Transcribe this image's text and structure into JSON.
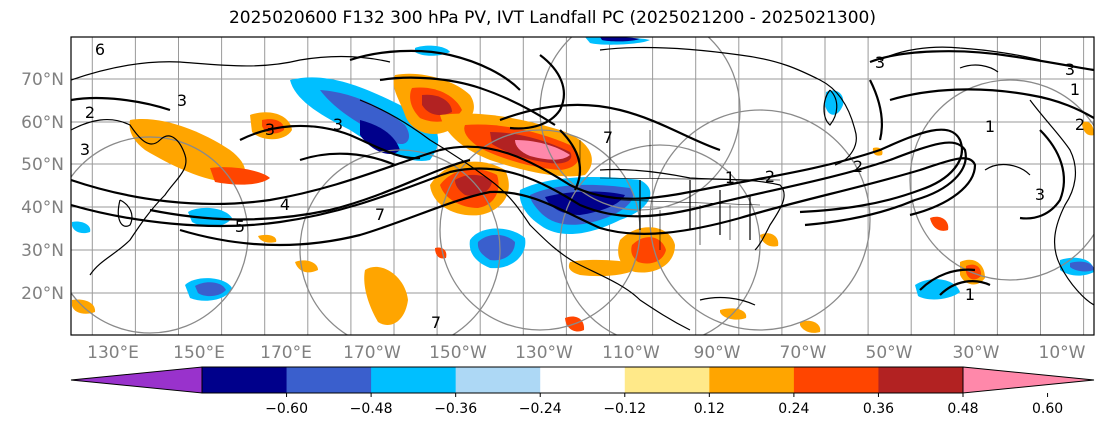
{
  "title": "2025020600 F132 300 hPa PV, IVT Landfall PC (2025021200 - 2025021300)",
  "lat_labels": [
    "70°N",
    "60°N",
    "50°N",
    "40°N",
    "30°N",
    "20°N"
  ],
  "lon_labels": [
    "130°E",
    "150°E",
    "170°E",
    "170°W",
    "150°W",
    "130°W",
    "110°W",
    "90°W",
    "70°W",
    "50°W",
    "30°W",
    "10°W"
  ],
  "colorbar": {
    "colors": [
      "#9932cc",
      "#00008b",
      "#3a5fcd",
      "#00bfff",
      "#add8f5",
      "#ffffff",
      "#ffe989",
      "#ffa500",
      "#ff4500",
      "#b22222",
      "#ff88aa"
    ],
    "tick_labels": [
      "−0.60",
      "−0.48",
      "−0.36",
      "−0.24",
      "−0.12",
      "0.12",
      "0.24",
      "0.36",
      "0.48",
      "0.60"
    ]
  },
  "contour_labels": [
    "6",
    "3",
    "3",
    "3",
    "3",
    "4",
    "5",
    "7",
    "7",
    "2",
    "3",
    "2",
    "1",
    "3",
    "1",
    "1",
    "2",
    "3",
    "2",
    "1",
    "7"
  ]
}
